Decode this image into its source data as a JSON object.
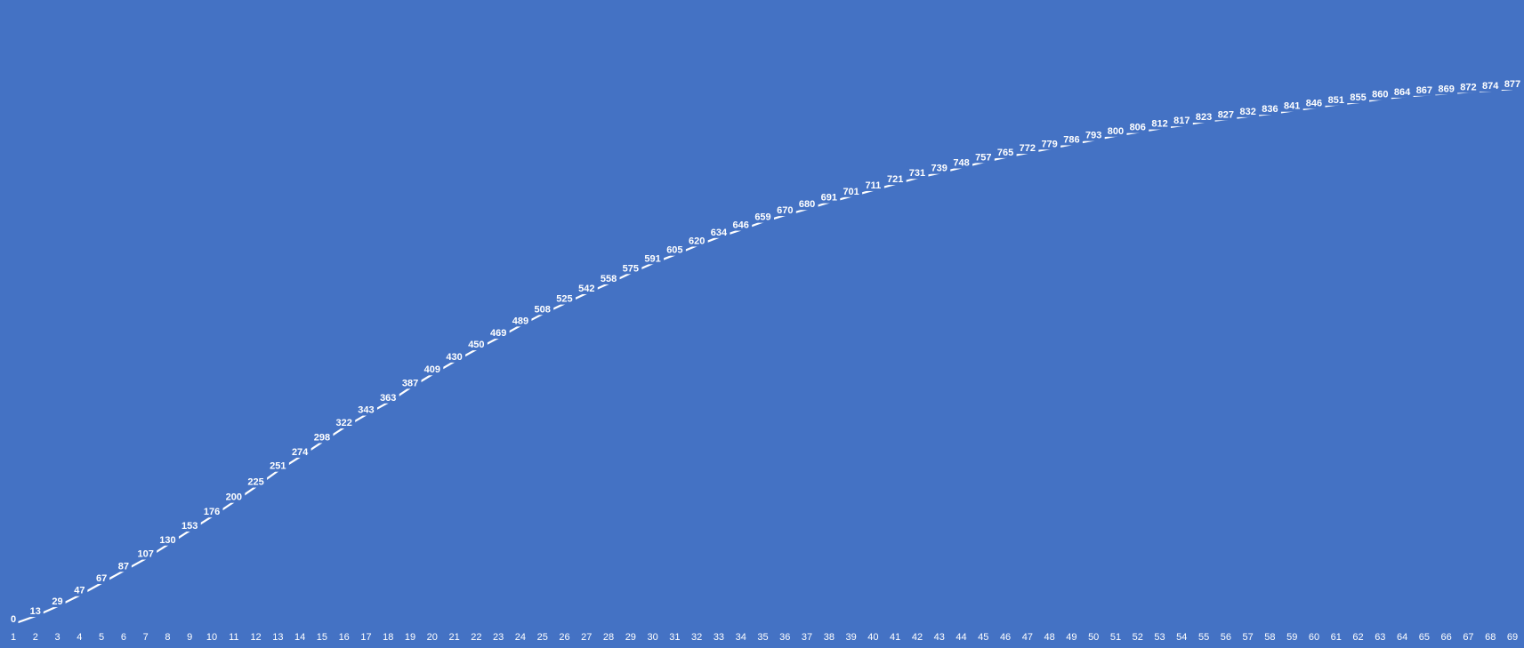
{
  "chart_data": {
    "type": "line",
    "title": "",
    "xlabel": "",
    "ylabel": "",
    "background_color": "#4472C4",
    "mark_color": "#FFFFFF",
    "grid": false,
    "legend": "none",
    "drop_lines": true,
    "data_labels": true,
    "x": [
      1,
      2,
      3,
      4,
      5,
      6,
      7,
      8,
      9,
      10,
      11,
      12,
      13,
      14,
      15,
      16,
      17,
      18,
      19,
      20,
      21,
      22,
      23,
      24,
      25,
      26,
      27,
      28,
      29,
      30,
      31,
      32,
      33,
      34,
      35,
      36,
      37,
      38,
      39,
      40,
      41,
      42,
      43,
      44,
      45,
      46,
      47,
      48,
      49,
      50,
      51,
      52,
      53,
      54,
      55,
      56,
      57,
      58,
      59,
      60,
      61,
      62,
      63,
      64,
      65,
      66,
      67,
      68,
      69
    ],
    "series": [
      {
        "values": [
          0,
          13,
          29,
          47,
          67,
          87,
          107,
          130,
          153,
          176,
          200,
          225,
          251,
          274,
          298,
          322,
          343,
          363,
          387,
          409,
          430,
          450,
          469,
          489,
          508,
          525,
          542,
          558,
          575,
          591,
          605,
          620,
          634,
          646,
          659,
          670,
          680,
          691,
          701,
          711,
          721,
          731,
          739,
          748,
          757,
          765,
          772,
          779,
          786,
          793,
          800,
          806,
          812,
          817,
          823,
          827,
          832,
          836,
          841,
          846,
          851,
          855,
          860,
          864,
          867,
          869,
          872,
          874,
          877
        ]
      }
    ],
    "ylim": [
      0,
      877
    ]
  }
}
